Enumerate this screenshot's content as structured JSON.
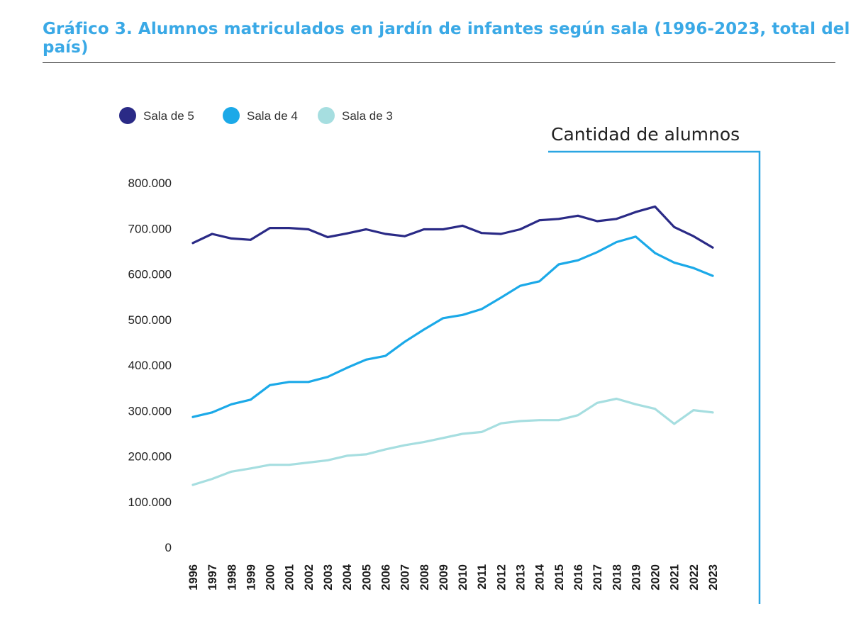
{
  "title": "Gráfico 3. Alumnos matriculados en jardín de infantes según sala (1996-2023, total del país)",
  "colors": {
    "title": "#3aa9e6",
    "frame": "#2aa6e2"
  },
  "chart_data": {
    "type": "line",
    "ylabel": "Cantidad de alumnos",
    "ylim": [
      0,
      800000
    ],
    "yticks": [
      0,
      100000,
      200000,
      300000,
      400000,
      500000,
      600000,
      700000,
      800000
    ],
    "yticklabels": [
      "0",
      "100.000",
      "200.000",
      "300.000",
      "400.000",
      "500.000",
      "600.000",
      "700.000",
      "800.000"
    ],
    "grid": false,
    "legend_position": "top-left",
    "x": [
      "1996",
      "1997",
      "1998",
      "1999",
      "2000",
      "2001",
      "2002",
      "2003",
      "2004",
      "2005",
      "2006",
      "2007",
      "2008",
      "2009",
      "2010",
      "2011",
      "2012",
      "2013",
      "2014",
      "2015",
      "2016",
      "2017",
      "2018",
      "2019",
      "2020",
      "2021",
      "2022",
      "2023"
    ],
    "series": [
      {
        "name": "Sala de 5",
        "color": "#2a2a86",
        "values": [
          668000,
          688000,
          678000,
          675000,
          701000,
          701000,
          698000,
          681000,
          689000,
          698000,
          688000,
          683000,
          698000,
          698000,
          706000,
          690000,
          688000,
          698000,
          718000,
          721000,
          728000,
          716000,
          721000,
          736000,
          748000,
          703000,
          683000,
          658000
        ]
      },
      {
        "name": "Sala de 4",
        "color": "#1ba9e8",
        "values": [
          286000,
          296000,
          314000,
          324000,
          356000,
          363000,
          363000,
          374000,
          394000,
          412000,
          420000,
          451000,
          478000,
          503000,
          510000,
          523000,
          548000,
          574000,
          584000,
          621000,
          630000,
          648000,
          670000,
          682000,
          646000,
          625000,
          613000,
          596000
        ]
      },
      {
        "name": "Sala de 3",
        "color": "#a6dee0",
        "values": [
          137000,
          150000,
          166000,
          173000,
          181000,
          181000,
          186000,
          191000,
          201000,
          204000,
          215000,
          224000,
          231000,
          240000,
          249000,
          253000,
          272000,
          277000,
          279000,
          279000,
          290000,
          317000,
          326000,
          314000,
          304000,
          271000,
          301000,
          296000
        ]
      }
    ]
  }
}
